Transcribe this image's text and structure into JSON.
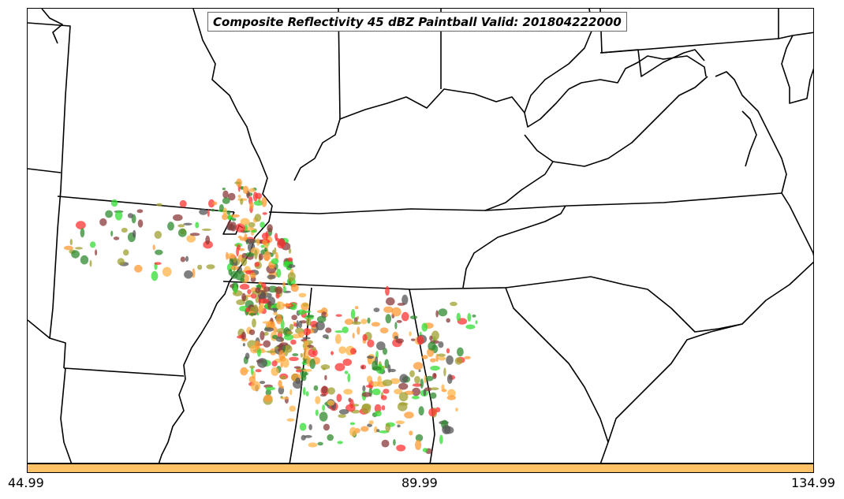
{
  "title": "Composite Reflectivity 45 dBZ Paintball Valid: 201804222000",
  "colorbar": {
    "color": "#ffc266",
    "ticks": [
      "44.99",
      "89.99",
      "134.99"
    ]
  },
  "member_colors": [
    "#ff3333",
    "#33dd33",
    "#ff9933",
    "#a0a030",
    "#8b3a3a",
    "#555555",
    "#ffb347",
    "#2e8b2e"
  ],
  "map": {
    "boundary_color": "#000000",
    "background": "#ffffff"
  }
}
